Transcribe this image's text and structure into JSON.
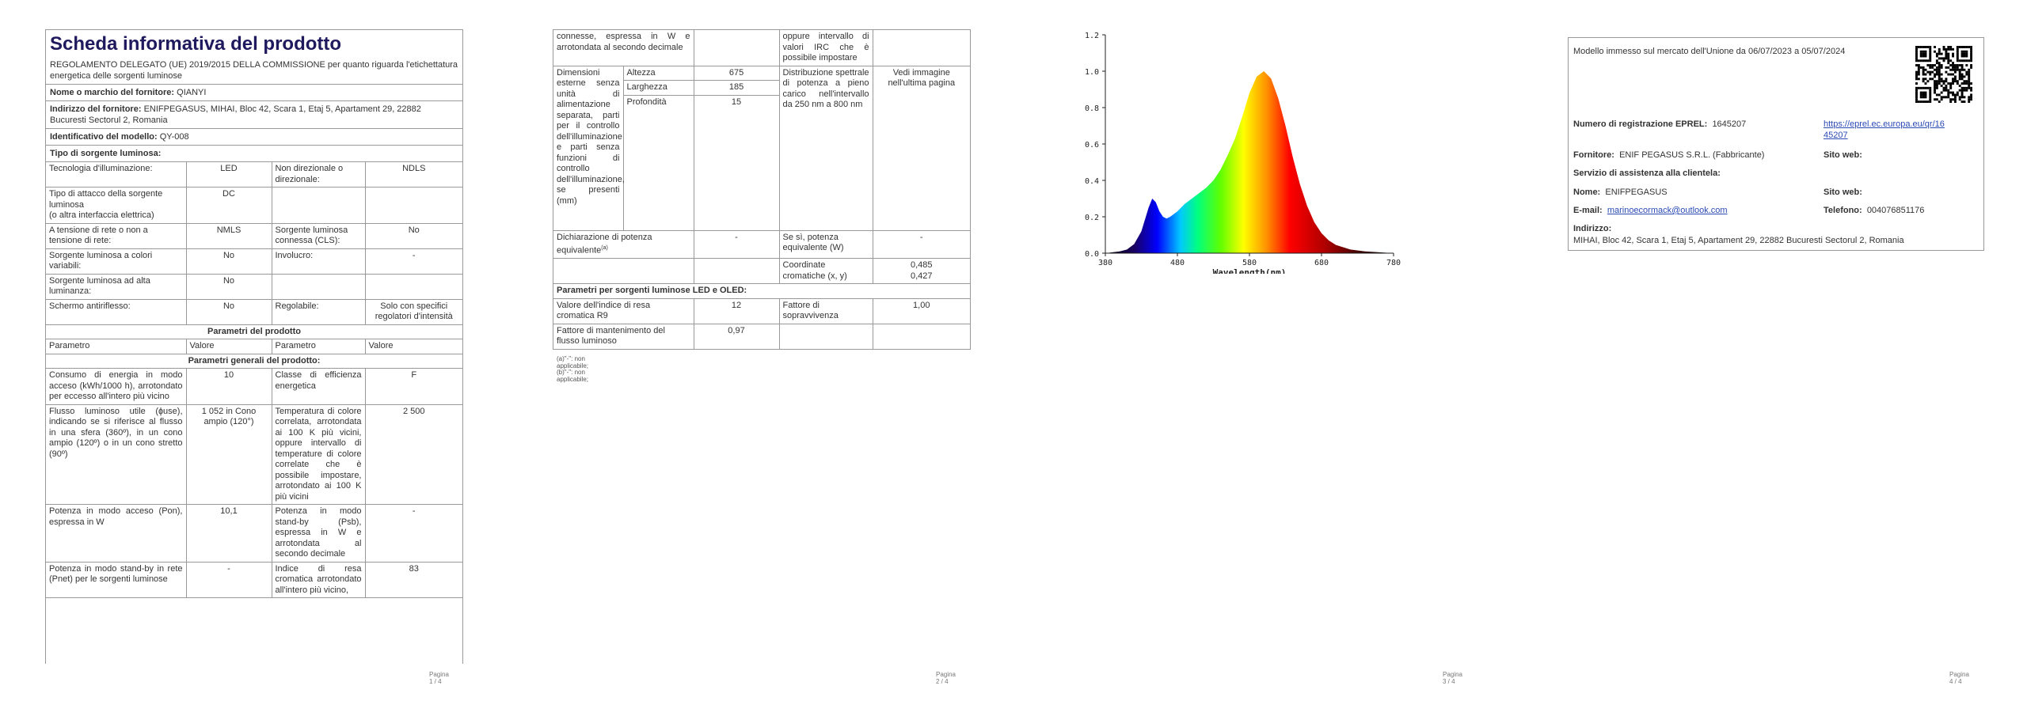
{
  "page1": {
    "title": "Scheda informativa del prodotto",
    "regulation": "REGOLAMENTO DELEGATO (UE) 2019/2015 DELLA COMMISSIONE per quanto riguarda l'etichettatura energetica delle sorgenti luminose",
    "supplier_name_label": "Nome o marchio del fornitore:",
    "supplier_name": "QIANYI",
    "supplier_addr_label": "Indirizzo del fornitore:",
    "supplier_addr": "ENIFPEGASUS, MIHAI, Bloc 42, Scara 1, Etaj 5, Apartament 29, 22882 Bucuresti Sectorul 2, Romania",
    "model_label": "Identificativo del modello:",
    "model": "QY-008",
    "source_type_label": "Tipo di sorgente luminosa:",
    "rows": [
      [
        "Tecnologia d'illuminazione:",
        "LED",
        "Non direzionale o direzionale:",
        "NDLS"
      ],
      [
        "Tipo di attacco della sorgente luminosa\n(o altra interfaccia elettrica)",
        "DC",
        "",
        ""
      ],
      [
        "A tensione di rete o non a tensione di rete:",
        "NMLS",
        "Sorgente luminosa connessa (CLS):",
        "No"
      ],
      [
        "Sorgente luminosa a colori variabili:",
        "No",
        "Involucro:",
        "-"
      ],
      [
        "Sorgente luminosa ad alta luminanza:",
        "No",
        "",
        ""
      ],
      [
        "Schermo antiriflesso:",
        "No",
        "Regolabile:",
        "Solo con specifici regolatori d'intensità"
      ]
    ],
    "params_header": "Parametri del prodotto",
    "col_headers": [
      "Parametro",
      "Valore",
      "Parametro",
      "Valore"
    ],
    "general_header": "Parametri generali del prodotto:",
    "general_rows": [
      [
        "Consumo di energia in modo acceso (kWh/1000 h), arrotondato per eccesso all'intero più vicino",
        "10",
        "Classe di efficienza energetica",
        "F"
      ],
      [
        "Flusso luminoso utile (ɸuse), indicando se si riferisce al flusso in una sfera (360º), in un cono ampio (120º) o in un cono stretto (90º)",
        "1 052 in Cono ampio (120°)",
        "Temperatura di colore correlata, arrotondata ai 100 K più vicini, oppure intervallo di temperature di colore correlate che è possibile impostare, arrotondato ai 100 K più vicini",
        "2 500"
      ],
      [
        "Potenza in modo acceso (Pon), espressa in W",
        "10,1",
        "Potenza in modo stand-by (Psb), espressa in W e arrotondata al secondo decimale",
        "-"
      ],
      [
        "Potenza in modo stand-by in rete (Pnet) per le sorgenti luminose",
        "-",
        "Indice di resa cromatica arrotondato all'intero più vicino,",
        "83"
      ]
    ],
    "page_num": "Pagina 1 / 4"
  },
  "page2": {
    "top_left": "connesse, espressa in W e arrotondata al secondo decimale",
    "top_right": "oppure intervallo di valori IRC che è possibile impostare",
    "dim_label": "Dimensioni esterne senza unità di alimentazione separata, parti per il controllo dell'illuminazione e parti senza funzioni di controllo dell'illuminazione, se presenti (mm)",
    "dims": [
      [
        "Altezza",
        "675"
      ],
      [
        "Larghezza",
        "185"
      ],
      [
        "Profondità",
        "15"
      ]
    ],
    "spd_label": "Distribuzione spettrale di potenza a pieno carico nell'intervallo da 250 nm a 800 nm",
    "spd_value": "Vedi immagine nell'ultima pagina",
    "eq_power_label": "Dichiarazione di potenza equivalente",
    "eq_power_sup": "(a)",
    "eq_power_value": "-",
    "eq_power_w_label": "Se sì, potenza equivalente (W)",
    "eq_power_w_value": "-",
    "chroma_label": "Coordinate cromatiche (x, y)",
    "chroma_x": "0,485",
    "chroma_y": "0,427",
    "led_header": "Parametri per sorgenti luminose LED e OLED:",
    "r9_label": "Valore dell'indice di resa cromatica R9",
    "r9_value": "12",
    "surv_label": "Fattore di sopravvivenza",
    "surv_value": "1,00",
    "maint_label": "Fattore di mantenimento del flusso luminoso",
    "maint_value": "0,97",
    "fn_a": "(a)\"-\": non applicabile;",
    "fn_b": "(b)\"-\": non applicabile;",
    "page_num": "Pagina 2 / 4"
  },
  "page3": {
    "page_num": "Pagina 3 / 4"
  },
  "chart_data": {
    "type": "area",
    "xlabel": "Wavelength(nm)",
    "ylabel": "",
    "xlim": [
      380,
      780
    ],
    "ylim": [
      0,
      1.2
    ],
    "xticks": [
      380,
      480,
      580,
      680,
      780
    ],
    "yticks": [
      "0.0",
      "0.2",
      "0.4",
      "0.6",
      "0.8",
      "1.0",
      "1.2"
    ],
    "grid": false,
    "x": [
      380,
      400,
      410,
      420,
      430,
      440,
      445,
      450,
      455,
      460,
      465,
      470,
      480,
      490,
      500,
      510,
      520,
      530,
      540,
      550,
      560,
      570,
      580,
      590,
      600,
      610,
      620,
      630,
      640,
      650,
      660,
      670,
      680,
      690,
      700,
      720,
      740,
      760,
      780
    ],
    "y": [
      0.0,
      0.01,
      0.02,
      0.05,
      0.12,
      0.25,
      0.3,
      0.28,
      0.23,
      0.2,
      0.19,
      0.2,
      0.23,
      0.27,
      0.3,
      0.33,
      0.36,
      0.4,
      0.46,
      0.54,
      0.63,
      0.75,
      0.88,
      0.97,
      1.0,
      0.96,
      0.85,
      0.7,
      0.53,
      0.38,
      0.26,
      0.17,
      0.11,
      0.07,
      0.045,
      0.02,
      0.01,
      0.005,
      0.0
    ]
  },
  "page4": {
    "market_text": "Modello immesso sul mercato dell'Unione da 06/07/2023 a 05/07/2024",
    "eprel_label": "Numero di registrazione EPREL:",
    "eprel_value": "1645207",
    "eprel_url_l1": "https://eprel.ec.europa.eu/qr/16",
    "eprel_url_l2": "45207",
    "supplier_label": "Fornitore:",
    "supplier_value": "ENIF PEGASUS S.R.L. (Fabbricante)",
    "website_label": "Sito web:",
    "service_label": "Servizio di assistenza alla clientela:",
    "name_label": "Nome:",
    "name_value": "ENIFPEGASUS",
    "website2_label": "Sito web:",
    "email_label": "E-mail:",
    "email_value": "marinoecormack@outlook.com",
    "phone_label": "Telefono:",
    "phone_value": "004076851176",
    "address_label": "Indirizzo:",
    "address_value": "MIHAI, Bloc 42, Scara 1, Etaj 5, Apartament 29, 22882 Bucuresti Sectorul 2, Romania",
    "qr_icon": "qr-code-icon",
    "page_num": "Pagina 4 / 4"
  }
}
